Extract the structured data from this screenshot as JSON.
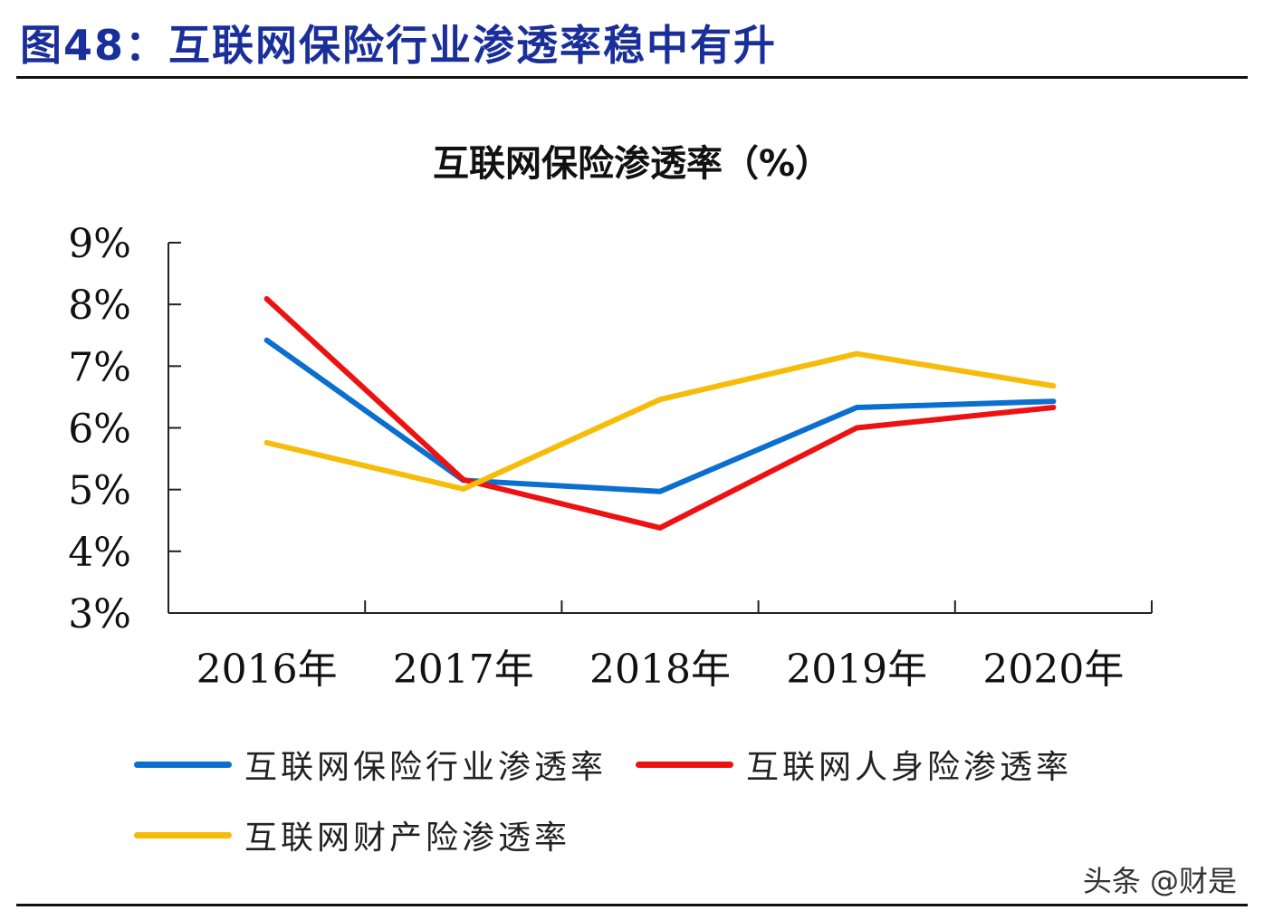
{
  "figure_title": "图48：互联网保险行业渗透率稳中有升",
  "watermark": "头条 @财是",
  "chart_data": {
    "type": "line",
    "title": "互联网保险渗透率（%）",
    "categories": [
      "2016年",
      "2017年",
      "2018年",
      "2019年",
      "2020年"
    ],
    "ylim": [
      3,
      9
    ],
    "yticks": [
      "3%",
      "4%",
      "5%",
      "6%",
      "7%",
      "8%",
      "9%"
    ],
    "grid": false,
    "legend_placement": "bottom",
    "series": [
      {
        "name": "互联网保险行业渗透率",
        "color": "#0a6fce",
        "values": [
          7.42,
          5.15,
          4.97,
          6.33,
          6.43
        ]
      },
      {
        "name": "互联网人身险渗透率",
        "color": "#ee1111",
        "values": [
          8.09,
          5.16,
          4.38,
          6.0,
          6.33
        ]
      },
      {
        "name": "互联网财产险渗透率",
        "color": "#f7bb0a",
        "values": [
          5.76,
          5.01,
          6.46,
          7.2,
          6.68
        ]
      }
    ]
  }
}
